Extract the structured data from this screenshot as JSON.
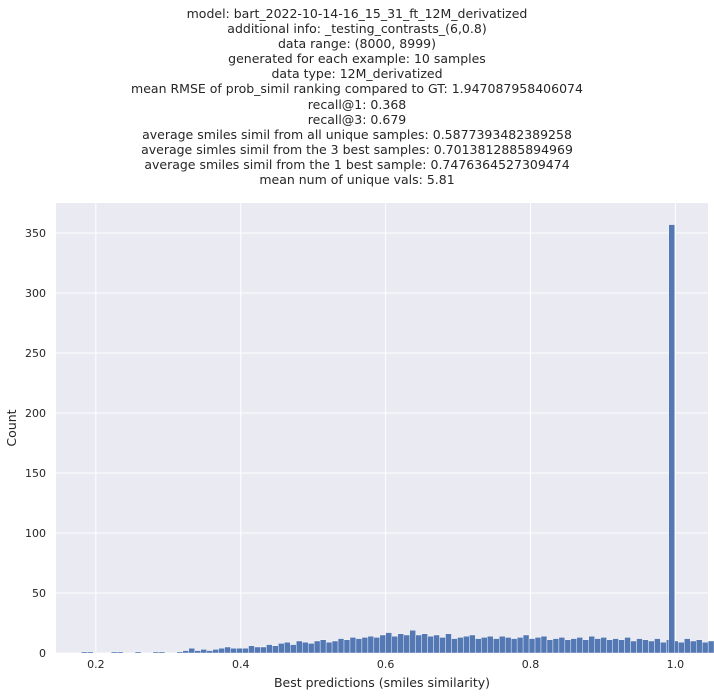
{
  "chart_data": {
    "type": "bar",
    "title_lines": [
      "model: bart_2022-10-14-16_15_31_ft_12M_derivatized",
      "additional info: _testing_contrasts_(6,0.8)",
      "data range: (8000, 8999)",
      "generated for each example: 10 samples",
      "data type: 12M_derivatized",
      "mean RMSE of prob_simil ranking compared to GT: 1.947087958406074",
      "recall@1: 0.368",
      "recall@3: 0.679",
      "average smiles simil from all unique samples: 0.5877393482389258",
      "average simles simil from the 3 best samples: 0.7013812885894969",
      "average smiles simil from the 1 best sample: 0.7476364527309474",
      "mean num of unique vals: 5.81"
    ],
    "xlabel": "Best predictions (smiles similarity)",
    "ylabel": "Count",
    "xlim": [
      0.145,
      1.045
    ],
    "ylim": [
      0,
      375
    ],
    "xticks": [
      0.2,
      0.4,
      0.6,
      0.8,
      1.0
    ],
    "xtick_labels": [
      "0.2",
      "0.4",
      "0.6",
      "0.8",
      "1.0"
    ],
    "yticks": [
      0,
      50,
      100,
      150,
      200,
      250,
      300,
      350
    ],
    "ytick_labels": [
      "0",
      "50",
      "100",
      "150",
      "200",
      "250",
      "300",
      "350"
    ],
    "grid": true,
    "bin_start": 0.18,
    "bin_width": 0.00824,
    "counts": [
      1,
      1,
      0,
      0,
      0,
      1,
      1,
      0,
      0,
      1,
      0,
      0,
      1,
      1,
      0,
      0,
      1,
      2,
      4,
      2,
      3,
      2,
      3,
      4,
      5,
      4,
      4,
      4,
      6,
      5,
      5,
      7,
      6,
      8,
      9,
      7,
      10,
      9,
      8,
      10,
      11,
      9,
      10,
      12,
      11,
      13,
      12,
      13,
      14,
      13,
      15,
      17,
      14,
      16,
      15,
      19,
      15,
      16,
      14,
      15,
      13,
      16,
      12,
      13,
      14,
      15,
      12,
      13,
      14,
      12,
      14,
      13,
      12,
      13,
      15,
      12,
      13,
      14,
      11,
      12,
      13,
      11,
      12,
      13,
      11,
      14,
      12,
      13,
      11,
      12,
      11,
      13,
      10,
      12,
      11,
      10,
      12,
      9,
      11,
      10,
      9,
      12,
      10,
      11,
      9,
      10,
      9,
      11,
      8,
      10,
      9,
      8,
      10,
      9,
      8,
      9,
      8,
      11,
      7,
      8,
      6,
      9,
      5,
      7,
      6,
      5,
      4,
      5,
      3,
      3,
      4,
      4,
      3,
      2,
      2,
      4,
      3,
      1,
      2,
      1,
      0,
      0,
      1,
      0,
      0,
      0,
      0,
      1,
      0,
      0,
      0,
      0,
      0,
      0,
      0,
      0,
      0,
      0,
      0,
      0,
      1,
      0,
      0,
      0,
      0,
      0,
      0,
      0,
      0,
      0,
      0,
      0,
      0,
      0,
      0,
      0,
      0,
      0,
      0,
      0,
      0,
      0,
      0,
      0,
      0,
      0,
      0,
      0,
      0,
      0,
      0,
      0,
      0,
      0,
      0,
      0,
      0
    ],
    "peak": {
      "x": 0.995,
      "count": 357
    },
    "bar_color": "#4c72b0",
    "background_color": "#eaeaf2",
    "grid_color": "#ffffff"
  }
}
